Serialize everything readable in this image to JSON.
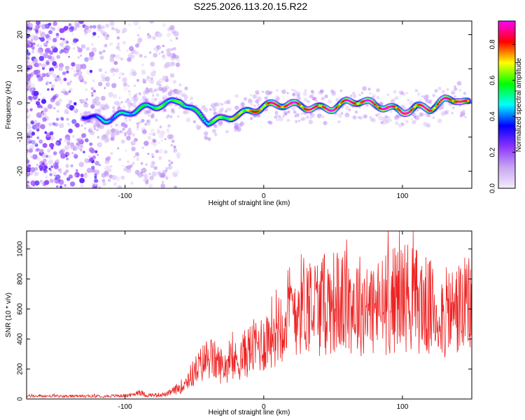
{
  "title": "S225.2026.113.20.15.R22",
  "chart_data": [
    {
      "type": "heatmap",
      "xlabel": "Height of straight line (km)",
      "ylabel": "Frequency (Hz)",
      "xlim": [
        -171,
        150
      ],
      "ylim": [
        -25,
        24
      ],
      "xticks": [
        -100,
        0,
        100
      ],
      "yticks": [
        -20,
        -10,
        0,
        10,
        20
      ],
      "colorbar": {
        "label": "Normalized spectral amplitude",
        "range": [
          0,
          0.93
        ],
        "ticks": [
          0.0,
          0.2,
          0.4,
          0.6,
          0.8
        ],
        "colors": [
          "#f4ecfb",
          "#c8a6f2",
          "#8c33ff",
          "#0000ff",
          "#00ffff",
          "#00ff00",
          "#ffff00",
          "#ff0000",
          "#ff00ff"
        ]
      },
      "ridge": [
        {
          "x": -130,
          "f": -3,
          "a": 0.3
        },
        {
          "x": -115,
          "f": -5,
          "a": 0.45
        },
        {
          "x": -100,
          "f": -4,
          "a": 0.45
        },
        {
          "x": -90,
          "f": -2,
          "a": 0.5
        },
        {
          "x": -75,
          "f": 0,
          "a": 0.55
        },
        {
          "x": -60,
          "f": 1,
          "a": 0.55
        },
        {
          "x": -50,
          "f": -3,
          "a": 0.5
        },
        {
          "x": -40,
          "f": -6,
          "a": 0.55
        },
        {
          "x": -30,
          "f": -5,
          "a": 0.6
        },
        {
          "x": -20,
          "f": -3,
          "a": 0.65
        },
        {
          "x": -10,
          "f": -2,
          "a": 0.7
        },
        {
          "x": 0,
          "f": -1,
          "a": 0.75
        },
        {
          "x": 10,
          "f": -1,
          "a": 0.8
        },
        {
          "x": 20,
          "f": -1,
          "a": 0.85
        },
        {
          "x": 30,
          "f": -1,
          "a": 0.8
        },
        {
          "x": 40,
          "f": -1,
          "a": 0.8
        },
        {
          "x": 50,
          "f": -1,
          "a": 0.85
        },
        {
          "x": 60,
          "f": 0,
          "a": 0.8
        },
        {
          "x": 70,
          "f": 0,
          "a": 0.8
        },
        {
          "x": 80,
          "f": -1,
          "a": 0.85
        },
        {
          "x": 90,
          "f": -1,
          "a": 0.85
        },
        {
          "x": 100,
          "f": -2,
          "a": 0.85
        },
        {
          "x": 110,
          "f": -1,
          "a": 0.8
        },
        {
          "x": 120,
          "f": -2,
          "a": 0.8
        },
        {
          "x": 130,
          "f": 0,
          "a": 0.8
        },
        {
          "x": 140,
          "f": 1,
          "a": 0.85
        },
        {
          "x": 148,
          "f": 0,
          "a": 0.7
        }
      ]
    },
    {
      "type": "line",
      "xlabel": "Height of straight line (km)",
      "ylabel": "SNR (10 * v/v)",
      "xlim": [
        -171,
        150
      ],
      "ylim": [
        0,
        1120
      ],
      "xticks": [
        -100,
        0,
        100
      ],
      "yticks": [
        0,
        200,
        400,
        600,
        800,
        1000
      ],
      "color": "#ee2222",
      "series": [
        {
          "x": -171,
          "y": 20
        },
        {
          "x": -140,
          "y": 18
        },
        {
          "x": -110,
          "y": 20
        },
        {
          "x": -95,
          "y": 25
        },
        {
          "x": -90,
          "y": 50
        },
        {
          "x": -85,
          "y": 25
        },
        {
          "x": -70,
          "y": 30
        },
        {
          "x": -60,
          "y": 80
        },
        {
          "x": -50,
          "y": 180
        },
        {
          "x": -40,
          "y": 280
        },
        {
          "x": -30,
          "y": 220
        },
        {
          "x": -20,
          "y": 250
        },
        {
          "x": -10,
          "y": 330
        },
        {
          "x": 0,
          "y": 380
        },
        {
          "x": 10,
          "y": 500
        },
        {
          "x": 20,
          "y": 600
        },
        {
          "x": 30,
          "y": 650
        },
        {
          "x": 40,
          "y": 620
        },
        {
          "x": 50,
          "y": 650
        },
        {
          "x": 60,
          "y": 640
        },
        {
          "x": 70,
          "y": 630
        },
        {
          "x": 80,
          "y": 600
        },
        {
          "x": 90,
          "y": 640
        },
        {
          "x": 100,
          "y": 700
        },
        {
          "x": 110,
          "y": 660
        },
        {
          "x": 120,
          "y": 600
        },
        {
          "x": 130,
          "y": 560
        },
        {
          "x": 140,
          "y": 600
        },
        {
          "x": 150,
          "y": 620
        }
      ]
    }
  ]
}
